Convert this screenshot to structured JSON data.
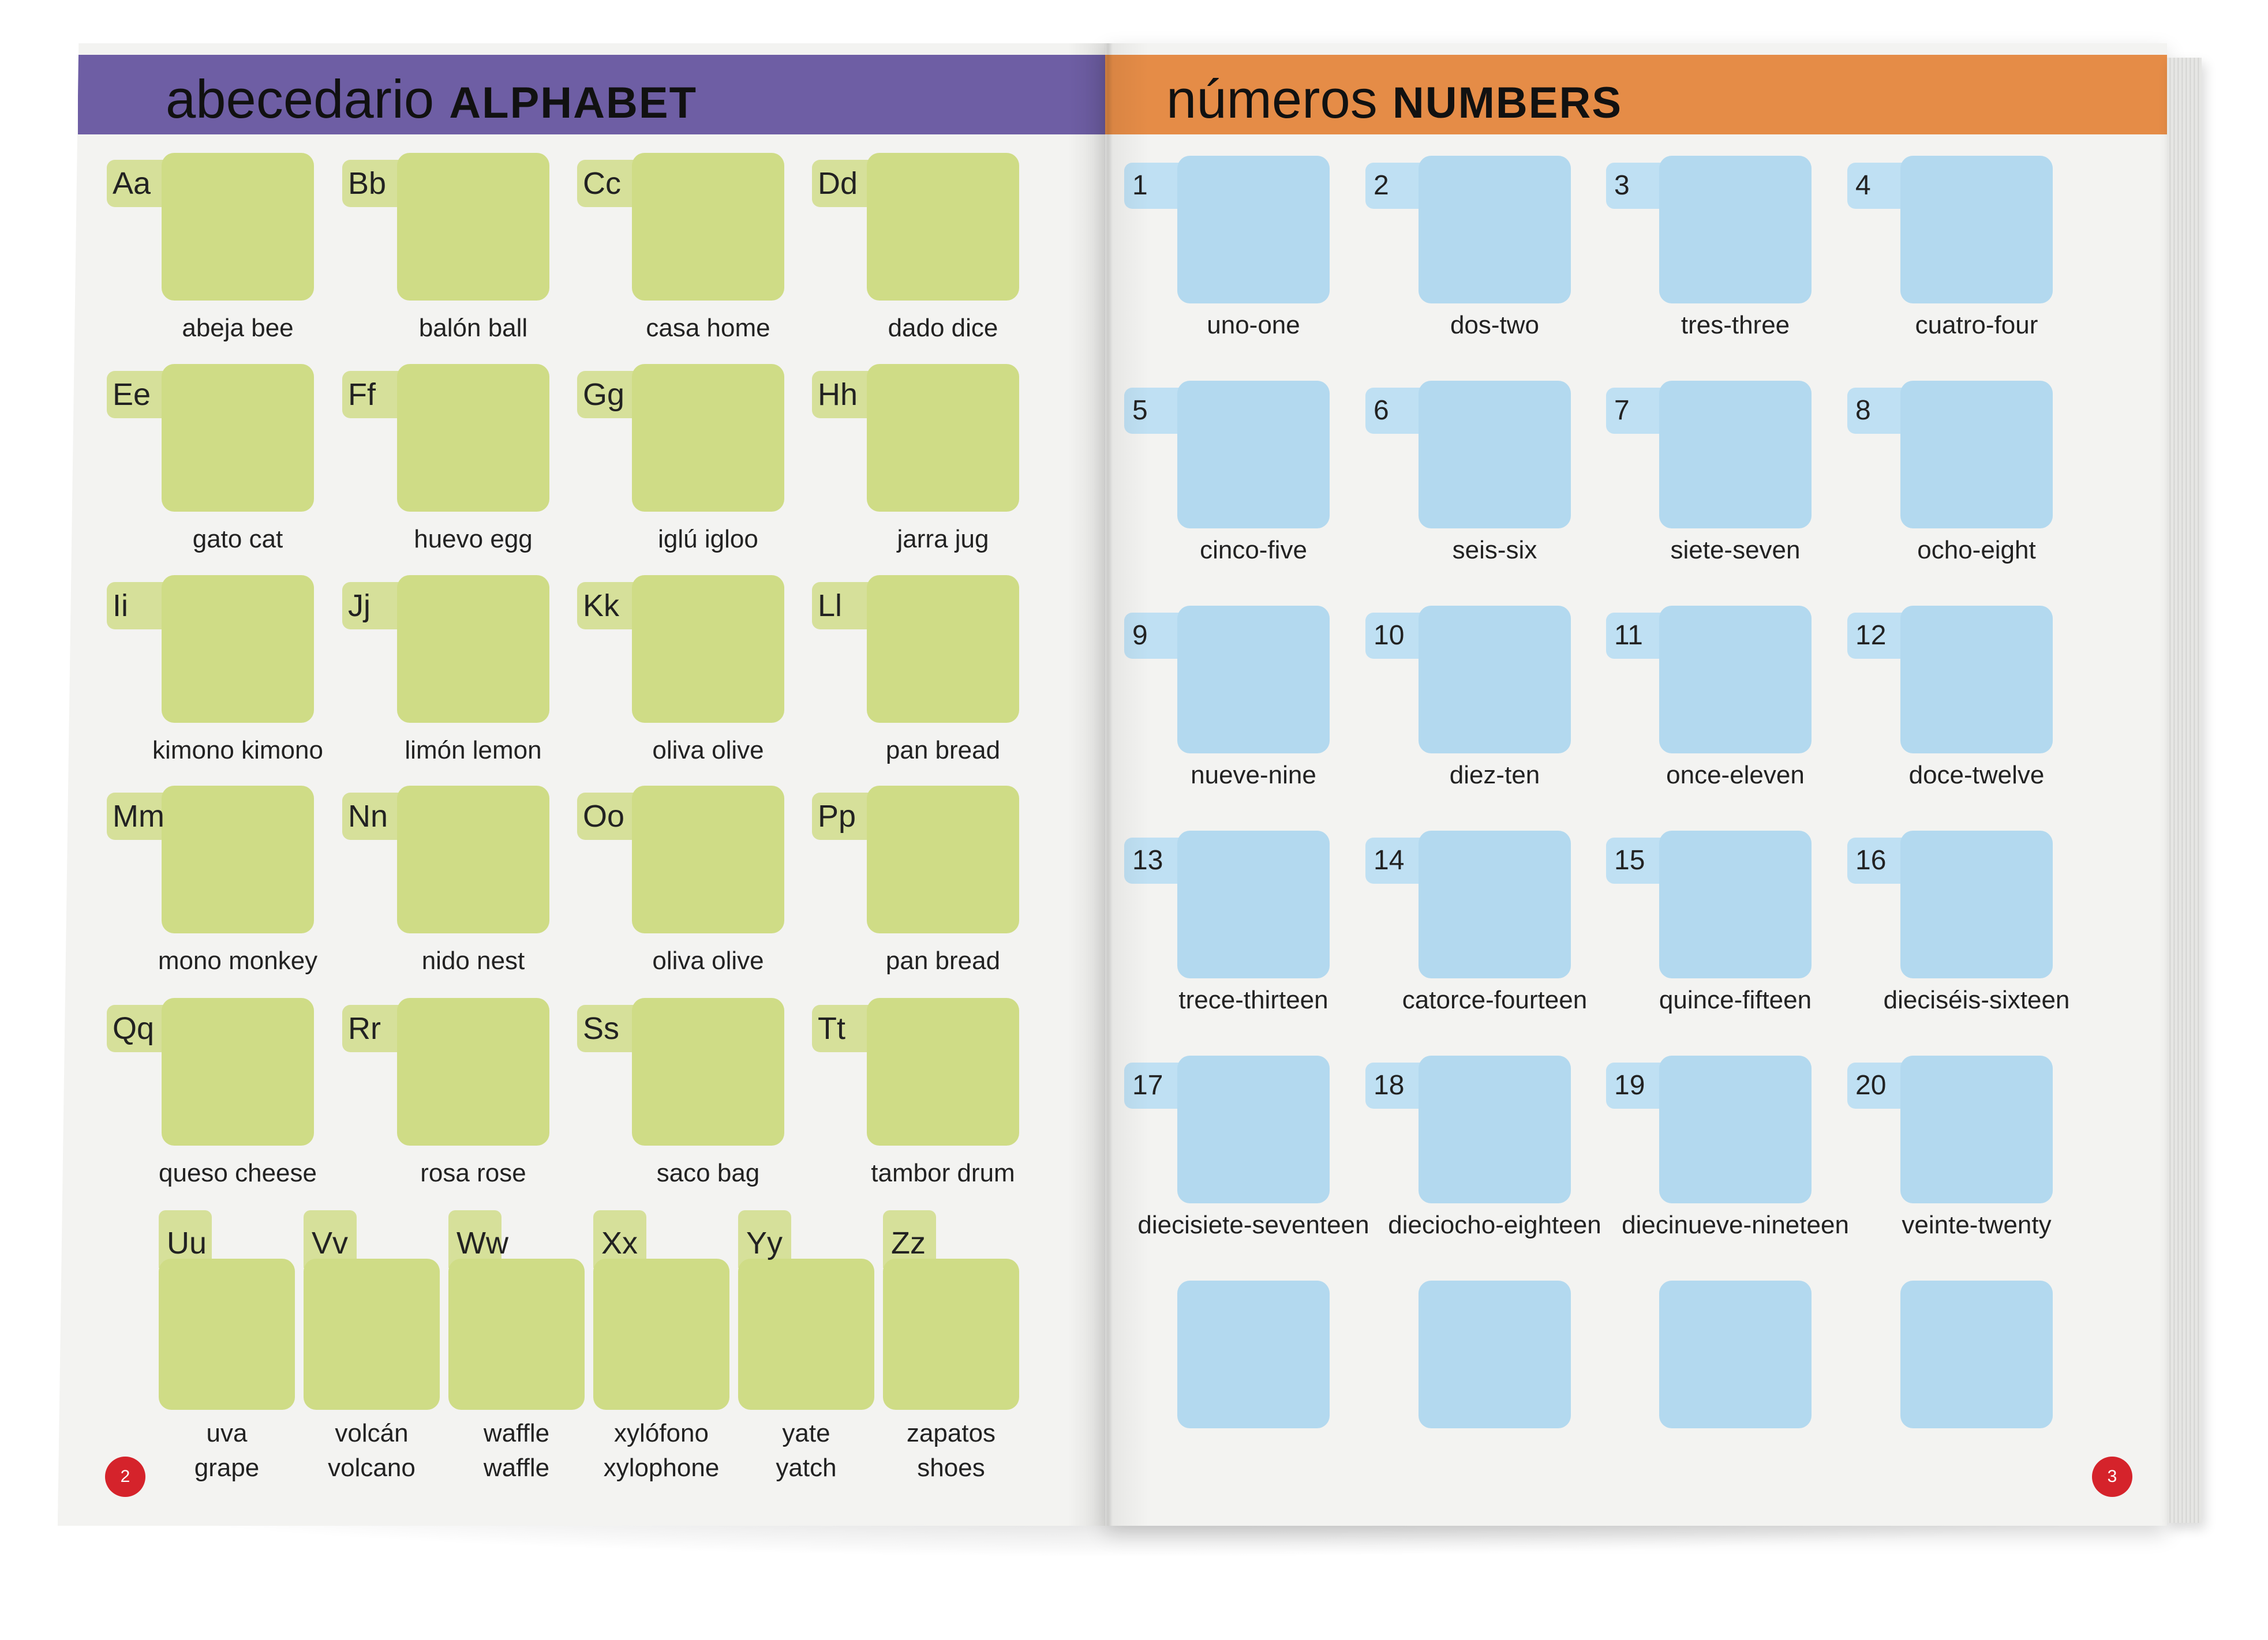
{
  "left_page": {
    "title_es": "abecedario",
    "title_en": "ALPHABET",
    "header_color": "#6e5ea4",
    "tile_color": "#cfdc86",
    "page_number": "2",
    "cards": [
      {
        "letter": "Aa",
        "word": "abeja bee"
      },
      {
        "letter": "Bb",
        "word": "balón ball"
      },
      {
        "letter": "Cc",
        "word": "casa home"
      },
      {
        "letter": "Dd",
        "word": "dado dice"
      },
      {
        "letter": "Ee",
        "word": "gato cat"
      },
      {
        "letter": "Ff",
        "word": "huevo egg"
      },
      {
        "letter": "Gg",
        "word": "iglú igloo"
      },
      {
        "letter": "Hh",
        "word": "jarra jug"
      },
      {
        "letter": "Ii",
        "word": "kimono kimono"
      },
      {
        "letter": "Jj",
        "word": "limón lemon"
      },
      {
        "letter": "Kk",
        "word": "oliva olive"
      },
      {
        "letter": "Ll",
        "word": "pan bread"
      },
      {
        "letter": "Mm",
        "word": "mono monkey"
      },
      {
        "letter": "Nn",
        "word": "nido nest"
      },
      {
        "letter": "Oo",
        "word": "oliva olive"
      },
      {
        "letter": "Pp",
        "word": "pan bread"
      },
      {
        "letter": "Qq",
        "word": "queso cheese"
      },
      {
        "letter": "Rr",
        "word": "rosa rose"
      },
      {
        "letter": "Ss",
        "word": "saco bag"
      },
      {
        "letter": "Tt",
        "word": "tambor drum"
      }
    ],
    "bottom_cards": [
      {
        "letter": "Uu",
        "es": "uva",
        "en": "grape"
      },
      {
        "letter": "Vv",
        "es": "volcán",
        "en": "volcano"
      },
      {
        "letter": "Ww",
        "es": "waffle",
        "en": "waffle"
      },
      {
        "letter": "Xx",
        "es": "xylófono",
        "en": "xylophone"
      },
      {
        "letter": "Yy",
        "es": "yate",
        "en": "yatch"
      },
      {
        "letter": "Zz",
        "es": "zapatos",
        "en": "shoes"
      }
    ]
  },
  "right_page": {
    "title_es": "números",
    "title_en": "NUMBERS",
    "header_color": "#e58c47",
    "tile_color": "#b3d9ef",
    "page_number": "3",
    "cards": [
      {
        "number": "1",
        "word": "uno-one"
      },
      {
        "number": "2",
        "word": "dos-two"
      },
      {
        "number": "3",
        "word": "tres-three"
      },
      {
        "number": "4",
        "word": "cuatro-four"
      },
      {
        "number": "5",
        "word": "cinco-five"
      },
      {
        "number": "6",
        "word": "seis-six"
      },
      {
        "number": "7",
        "word": "siete-seven"
      },
      {
        "number": "8",
        "word": "ocho-eight"
      },
      {
        "number": "9",
        "word": "nueve-nine"
      },
      {
        "number": "10",
        "word": "diez-ten"
      },
      {
        "number": "11",
        "word": "once-eleven"
      },
      {
        "number": "12",
        "word": "doce-twelve"
      },
      {
        "number": "13",
        "word": "trece-thirteen"
      },
      {
        "number": "14",
        "word": "catorce-fourteen"
      },
      {
        "number": "15",
        "word": "quince-fifteen"
      },
      {
        "number": "16",
        "word": "dieciséis-sixteen"
      },
      {
        "number": "17",
        "word": "diecisiete-seventeen"
      },
      {
        "number": "18",
        "word": "dieciocho-eighteen"
      },
      {
        "number": "19",
        "word": "diecinueve-nineteen"
      },
      {
        "number": "20",
        "word": "veinte-twenty"
      }
    ],
    "empty_tiles": 4
  }
}
